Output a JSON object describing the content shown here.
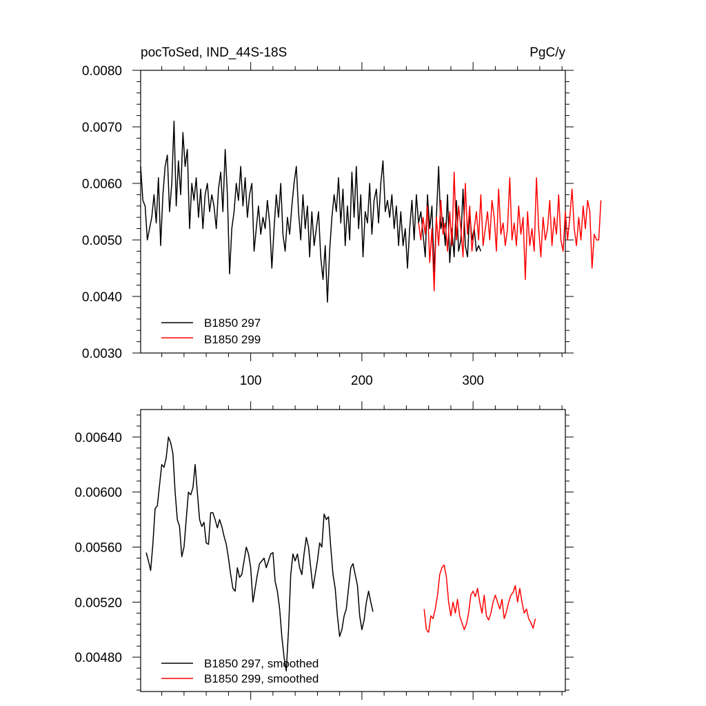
{
  "chart_data": [
    {
      "type": "line",
      "title": "pocToSed, IND_44S-18S",
      "units": "PgC/y",
      "xlabel": "",
      "ylabel": "",
      "xlim": [
        1,
        383
      ],
      "ylim": [
        0.003,
        0.008
      ],
      "x_ticks": [
        100,
        200,
        300
      ],
      "x_tick_labels": [
        "100",
        "200",
        "300"
      ],
      "y_ticks": [
        0.003,
        0.004,
        0.005,
        0.006,
        0.007,
        0.008
      ],
      "y_tick_labels": [
        "0.0030",
        "0.0040",
        "0.0050",
        "0.0060",
        "0.0070",
        "0.0080"
      ],
      "grid": false,
      "legend_position": "bottom-left",
      "series": [
        {
          "name": "B1850 297",
          "color": "#000000",
          "x_start": 1,
          "x_step": 2,
          "values": [
            0.0063,
            0.0057,
            0.0056,
            0.005,
            0.0052,
            0.0054,
            0.0058,
            0.0053,
            0.0061,
            0.0049,
            0.0058,
            0.0063,
            0.0065,
            0.0055,
            0.006,
            0.0071,
            0.0056,
            0.0064,
            0.0058,
            0.0069,
            0.0063,
            0.0066,
            0.0052,
            0.006,
            0.0057,
            0.0061,
            0.0054,
            0.0059,
            0.0052,
            0.0058,
            0.006,
            0.0055,
            0.0058,
            0.0056,
            0.0052,
            0.0059,
            0.0062,
            0.0055,
            0.0066,
            0.0058,
            0.0044,
            0.0052,
            0.0055,
            0.006,
            0.0057,
            0.0063,
            0.0056,
            0.0061,
            0.0054,
            0.0058,
            0.006,
            0.0048,
            0.0052,
            0.0056,
            0.0051,
            0.0054,
            0.0052,
            0.0057,
            0.0053,
            0.0045,
            0.0052,
            0.0058,
            0.0054,
            0.006,
            0.0051,
            0.0048,
            0.0054,
            0.0051,
            0.0056,
            0.006,
            0.0063,
            0.0055,
            0.005,
            0.0058,
            0.0052,
            0.0056,
            0.0047,
            0.0055,
            0.0049,
            0.0052,
            0.0055,
            0.0047,
            0.0043,
            0.0049,
            0.0039,
            0.0048,
            0.0054,
            0.0058,
            0.0055,
            0.0061,
            0.0053,
            0.0059,
            0.0049,
            0.0056,
            0.005,
            0.0062,
            0.0054,
            0.0063,
            0.0052,
            0.0058,
            0.0047,
            0.0055,
            0.0053,
            0.006,
            0.0051,
            0.0057,
            0.0059,
            0.0053,
            0.006,
            0.0064,
            0.0055,
            0.0057,
            0.0054,
            0.0058,
            0.0052,
            0.0056,
            0.0049,
            0.0055,
            0.0049,
            0.0052,
            0.0045,
            0.0052,
            0.0057,
            0.005,
            0.0058,
            0.0053,
            0.0055,
            0.0051,
            0.0047,
            0.0058,
            0.0052,
            0.0056,
            0.0044,
            0.0054,
            0.0063,
            0.0052,
            0.0054,
            0.0049,
            0.0058,
            0.0046,
            0.0052,
            0.0047,
            0.0057,
            0.0048,
            0.005,
            0.0059,
            0.0049,
            0.0047,
            0.0055,
            0.005,
            0.0052,
            0.0048,
            0.0049,
            0.0048
          ]
        },
        {
          "name": "B1850 299",
          "color": "#ff0000",
          "x_start": 251,
          "x_step": 2,
          "values": [
            0.0053,
            0.005,
            0.0054,
            0.0051,
            0.0056,
            0.0046,
            0.0052,
            0.0041,
            0.0054,
            0.0049,
            0.0057,
            0.0051,
            0.0053,
            0.0048,
            0.0055,
            0.0049,
            0.0062,
            0.005,
            0.0056,
            0.0052,
            0.0047,
            0.006,
            0.0051,
            0.0056,
            0.0048,
            0.0052,
            0.0055,
            0.005,
            0.0058,
            0.0049,
            0.0052,
            0.0055,
            0.005,
            0.0057,
            0.0054,
            0.0048,
            0.0059,
            0.0051,
            0.0053,
            0.0049,
            0.0052,
            0.0061,
            0.005,
            0.0053,
            0.0049,
            0.0056,
            0.0051,
            0.0054,
            0.0043,
            0.0055,
            0.0049,
            0.0052,
            0.0048,
            0.0061,
            0.0052,
            0.0047,
            0.0054,
            0.005,
            0.0052,
            0.0057,
            0.0049,
            0.0054,
            0.0051,
            0.0058,
            0.005,
            0.0048,
            0.0055,
            0.005,
            0.0054,
            0.0059,
            0.0052,
            0.0049,
            0.0054,
            0.005,
            0.0056,
            0.0052,
            0.0057,
            0.0055,
            0.0045,
            0.0051,
            0.005,
            0.005,
            0.0057
          ]
        }
      ]
    },
    {
      "type": "line",
      "title": "",
      "xlabel": "",
      "ylabel": "",
      "xlim": [
        1,
        383
      ],
      "ylim": [
        0.00455,
        0.0066
      ],
      "x_ticks": [
        100,
        200,
        300
      ],
      "x_tick_labels": [],
      "y_ticks": [
        0.0048,
        0.0052,
        0.0056,
        0.006,
        0.0064
      ],
      "y_tick_labels": [
        "0.00480",
        "0.00520",
        "0.00560",
        "0.00600",
        "0.00640"
      ],
      "grid": false,
      "legend_position": "bottom-left",
      "series": [
        {
          "name": "B1850 297, smoothed",
          "color": "#000000",
          "x_start": 6,
          "x_step": 2,
          "values": [
            0.00556,
            0.0055,
            0.00543,
            0.00562,
            0.00588,
            0.0059,
            0.00605,
            0.0062,
            0.00618,
            0.00625,
            0.0064,
            0.00636,
            0.00628,
            0.006,
            0.0058,
            0.00575,
            0.00553,
            0.0056,
            0.0058,
            0.006,
            0.00598,
            0.00603,
            0.0062,
            0.006,
            0.0058,
            0.00575,
            0.00578,
            0.00563,
            0.00562,
            0.00585,
            0.00585,
            0.0058,
            0.00574,
            0.0058,
            0.00575,
            0.00568,
            0.00562,
            0.00552,
            0.0054,
            0.0053,
            0.00528,
            0.00545,
            0.00538,
            0.0054,
            0.0055,
            0.0056,
            0.00555,
            0.00545,
            0.0052,
            0.0053,
            0.0054,
            0.00548,
            0.0055,
            0.00552,
            0.00545,
            0.0055,
            0.00555,
            0.00556,
            0.00535,
            0.00528,
            0.00515,
            0.00495,
            0.0048,
            0.0047,
            0.005,
            0.0054,
            0.00555,
            0.0055,
            0.00555,
            0.00545,
            0.0054,
            0.00555,
            0.00567,
            0.0056,
            0.00545,
            0.0053,
            0.0054,
            0.0055,
            0.00563,
            0.0056,
            0.00584,
            0.0058,
            0.00582,
            0.0056,
            0.0054,
            0.0053,
            0.0051,
            0.00495,
            0.005,
            0.0051,
            0.00515,
            0.0053,
            0.00545,
            0.00548,
            0.0054,
            0.00532,
            0.0051,
            0.005,
            0.00507,
            0.0052,
            0.00528,
            0.0052,
            0.00513
          ]
        },
        {
          "name": "B1850 299, smoothed",
          "color": "#ff0000",
          "x_start": 256,
          "x_step": 2,
          "values": [
            0.00515,
            0.005,
            0.00498,
            0.0051,
            0.00508,
            0.00515,
            0.00525,
            0.0054,
            0.00545,
            0.00547,
            0.00538,
            0.0052,
            0.0051,
            0.0052,
            0.00512,
            0.00522,
            0.0051,
            0.00505,
            0.005,
            0.00504,
            0.00512,
            0.00525,
            0.00528,
            0.00524,
            0.0053,
            0.0052,
            0.00512,
            0.00525,
            0.0051,
            0.00507,
            0.00512,
            0.0052,
            0.00525,
            0.0052,
            0.00515,
            0.00522,
            0.00508,
            0.00513,
            0.0052,
            0.00525,
            0.00527,
            0.00532,
            0.0052,
            0.0053,
            0.0052,
            0.00512,
            0.00515,
            0.00508,
            0.00505,
            0.00501,
            0.00508
          ]
        }
      ]
    }
  ]
}
